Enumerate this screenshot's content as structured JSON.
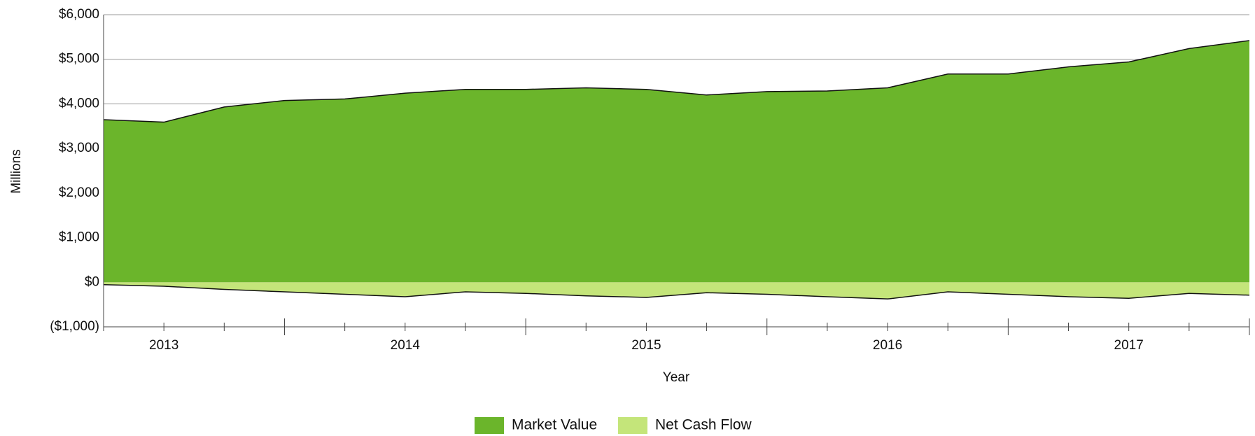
{
  "chart_data": {
    "type": "area",
    "x_label": "Year",
    "y_label": "Millions",
    "categories": [
      null,
      "2013",
      null,
      null,
      null,
      "2014",
      null,
      null,
      null,
      "2015",
      null,
      null,
      null,
      "2016",
      null,
      null,
      null,
      "2017",
      null,
      null
    ],
    "series": [
      {
        "name": "Market Value",
        "color": "#6bb52b",
        "values": [
          3645,
          3590,
          3930,
          4075,
          4110,
          4240,
          4325,
          4325,
          4360,
          4325,
          4200,
          4275,
          4290,
          4360,
          4670,
          4670,
          4830,
          4940,
          5240,
          5420
        ]
      },
      {
        "name": "Net Cash Flow",
        "color": "#c4e57a",
        "values": [
          -55,
          -90,
          -160,
          -215,
          -270,
          -325,
          -215,
          -250,
          -305,
          -340,
          -235,
          -270,
          -325,
          -375,
          -215,
          -270,
          -325,
          -360,
          -250,
          -290
        ]
      }
    ],
    "ylim": [
      -1000,
      6000
    ],
    "yticks": [
      {
        "value": -1000,
        "label": "($1,000)"
      },
      {
        "value": 0,
        "label": "$0"
      },
      {
        "value": 1000,
        "label": "$1,000"
      },
      {
        "value": 2000,
        "label": "$2,000"
      },
      {
        "value": 3000,
        "label": "$3,000"
      },
      {
        "value": 4000,
        "label": "$4,000"
      },
      {
        "value": 5000,
        "label": "$5,000"
      },
      {
        "value": 6000,
        "label": "$6,000"
      }
    ],
    "grid": true,
    "legend": "bottom"
  }
}
